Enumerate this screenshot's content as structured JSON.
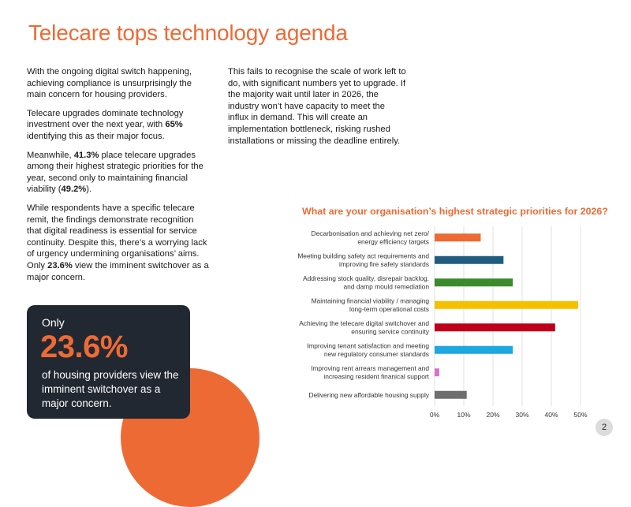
{
  "page": {
    "title": "Telecare tops technology agenda",
    "page_number": "2"
  },
  "left_column": {
    "p1": "With the ongoing digital switch happening, achieving compliance is unsurprisingly the main concern for housing providers.",
    "p2": "Telecare upgrades dominate technology investment over the next year, with 65% identifying this as their major focus.",
    "p3": "Meanwhile, 41.3% place telecare upgrades among their highest strategic priorities for the year, second only to maintaining financial viability (49.2%).",
    "p4": "While respondents have a specific telecare remit, the findings demonstrate recognition that digital readiness is essential for service continuity. Despite this, there’s a worrying lack of urgency undermining organisations’ aims. Only 23.6% view the imminent switchover as a major concern."
  },
  "right_column": {
    "p1": "This fails to recognise the scale of work left to do, with significant numbers yet to upgrade. If the majority wait until later in 2026, the industry won’t have capacity to meet the influx in demand. This will create an implementation bottleneck, risking rushed installations or missing the deadline entirely."
  },
  "callout": {
    "lead": "Only",
    "stat": "23.6%",
    "text": "of housing providers view the imminent switchover as a major concern."
  },
  "chart_data": {
    "type": "bar",
    "orientation": "horizontal",
    "title": "What are your organisation’s highest strategic priorities for 2026?",
    "categories": [
      [
        "Decarbonisation and achieving net zero/",
        "energy efficiency targets"
      ],
      [
        "Meeting building safety act requirements and",
        "improving fire safety standards"
      ],
      [
        "Addressing stock quality, disrepair backlog,",
        "and damp mould remediation"
      ],
      [
        "Maintaining financial viability / managing",
        "long-term operational costs"
      ],
      [
        "Achieving the telecare digital switchover and",
        "ensuring service continuity"
      ],
      [
        "Improving tenant satisfaction and meeting",
        "new regulatory consumer standards"
      ],
      [
        "Improving rent arrears management and",
        "increasing resident finanical support"
      ],
      [
        "Delivering new affordable housing supply"
      ]
    ],
    "values": [
      15.8,
      23.6,
      26.8,
      49.2,
      41.3,
      26.8,
      1.6,
      11.0
    ],
    "colors": [
      "#ee6a35",
      "#1f5c80",
      "#3b8a2c",
      "#f5c000",
      "#c0001a",
      "#1fa7e0",
      "#d773c4",
      "#6e6e6e"
    ],
    "xlim": [
      0,
      50
    ],
    "ticks": [
      "0%",
      "10%",
      "20%",
      "30%",
      "40%",
      "50%"
    ],
    "grid": true,
    "legend": "none"
  }
}
